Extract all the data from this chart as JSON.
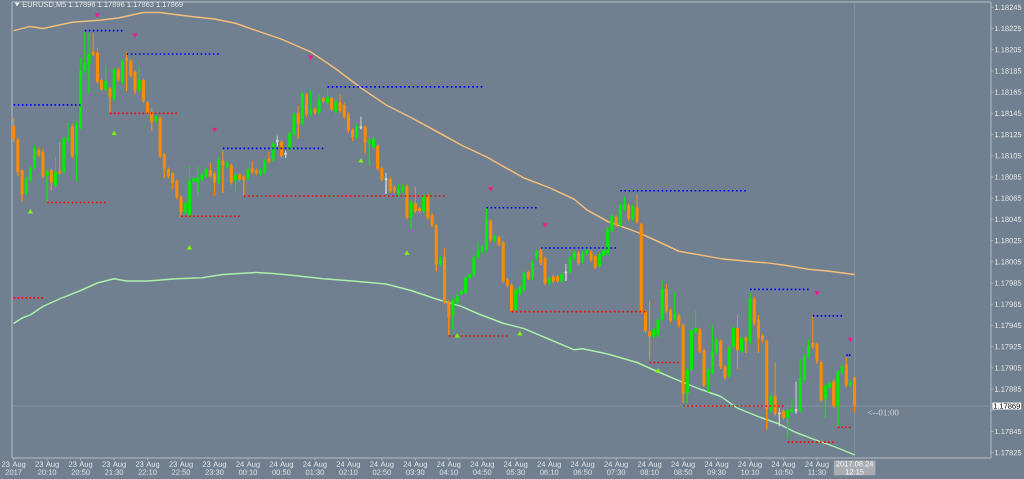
{
  "chart_data": {
    "type": "candlestick",
    "title": "EURUSD,M5 1.17896 1.17896 1.17863 1.17869",
    "x": [
      "2017-08-23T19:30",
      "2017-08-23T19:35",
      "2017-08-23T19:40",
      "2017-08-23T19:45",
      "2017-08-23T19:50",
      "2017-08-23T19:55",
      "2017-08-23T20:00",
      "2017-08-23T20:05",
      "2017-08-23T20:10",
      "2017-08-23T20:15",
      "2017-08-23T20:20",
      "2017-08-23T20:25",
      "2017-08-23T20:30",
      "2017-08-23T20:35",
      "2017-08-23T20:40",
      "2017-08-23T20:45",
      "2017-08-23T20:50",
      "2017-08-23T20:55",
      "2017-08-23T21:00",
      "2017-08-23T21:05",
      "2017-08-23T21:10",
      "2017-08-23T21:15",
      "2017-08-23T21:20",
      "2017-08-23T21:25",
      "2017-08-23T21:30",
      "2017-08-23T21:35",
      "2017-08-23T21:40",
      "2017-08-23T21:45",
      "2017-08-23T21:50",
      "2017-08-23T21:55",
      "2017-08-23T22:00",
      "2017-08-23T22:05",
      "2017-08-23T22:10",
      "2017-08-23T22:15",
      "2017-08-23T22:20",
      "2017-08-23T22:25",
      "2017-08-23T22:30",
      "2017-08-23T22:35",
      "2017-08-23T22:40",
      "2017-08-23T22:45",
      "2017-08-23T22:50",
      "2017-08-23T22:55",
      "2017-08-23T23:00",
      "2017-08-23T23:05",
      "2017-08-23T23:10",
      "2017-08-23T23:15",
      "2017-08-23T23:20",
      "2017-08-23T23:25",
      "2017-08-23T23:30",
      "2017-08-23T23:35",
      "2017-08-23T23:40",
      "2017-08-23T23:45",
      "2017-08-23T23:50",
      "2017-08-23T23:55",
      "2017-08-24T00:00",
      "2017-08-24T00:05",
      "2017-08-24T00:10",
      "2017-08-24T00:15",
      "2017-08-24T00:20",
      "2017-08-24T00:25",
      "2017-08-24T00:30",
      "2017-08-24T00:35",
      "2017-08-24T00:40",
      "2017-08-24T00:45",
      "2017-08-24T00:50",
      "2017-08-24T00:55",
      "2017-08-24T01:00",
      "2017-08-24T01:05",
      "2017-08-24T01:10",
      "2017-08-24T01:15",
      "2017-08-24T01:20",
      "2017-08-24T01:25",
      "2017-08-24T01:30",
      "2017-08-24T01:35",
      "2017-08-24T01:40",
      "2017-08-24T01:45",
      "2017-08-24T01:50",
      "2017-08-24T01:55",
      "2017-08-24T02:00",
      "2017-08-24T02:05",
      "2017-08-24T02:10",
      "2017-08-24T02:15",
      "2017-08-24T02:20",
      "2017-08-24T02:25",
      "2017-08-24T02:30",
      "2017-08-24T02:35",
      "2017-08-24T02:40",
      "2017-08-24T02:45",
      "2017-08-24T02:50",
      "2017-08-24T02:55",
      "2017-08-24T03:00",
      "2017-08-24T03:05",
      "2017-08-24T03:10",
      "2017-08-24T03:15",
      "2017-08-24T03:20",
      "2017-08-24T03:25",
      "2017-08-24T03:30",
      "2017-08-24T03:35",
      "2017-08-24T03:40",
      "2017-08-24T03:45",
      "2017-08-24T03:50",
      "2017-08-24T03:55",
      "2017-08-24T04:00",
      "2017-08-24T04:05",
      "2017-08-24T04:10",
      "2017-08-24T04:15",
      "2017-08-24T04:20",
      "2017-08-24T04:25",
      "2017-08-24T04:30",
      "2017-08-24T04:35",
      "2017-08-24T04:40",
      "2017-08-24T04:45",
      "2017-08-24T04:50",
      "2017-08-24T04:55",
      "2017-08-24T05:00",
      "2017-08-24T05:05",
      "2017-08-24T05:10",
      "2017-08-24T05:15",
      "2017-08-24T05:20",
      "2017-08-24T05:25",
      "2017-08-24T05:30",
      "2017-08-24T05:35",
      "2017-08-24T05:40",
      "2017-08-24T05:45",
      "2017-08-24T05:50",
      "2017-08-24T05:55",
      "2017-08-24T06:00",
      "2017-08-24T06:05",
      "2017-08-24T06:10",
      "2017-08-24T06:15",
      "2017-08-24T06:20",
      "2017-08-24T06:25",
      "2017-08-24T06:30",
      "2017-08-24T06:35",
      "2017-08-24T06:40",
      "2017-08-24T06:45",
      "2017-08-24T06:50",
      "2017-08-24T06:55",
      "2017-08-24T07:00",
      "2017-08-24T07:05",
      "2017-08-24T07:10",
      "2017-08-24T07:15",
      "2017-08-24T07:20",
      "2017-08-24T07:25",
      "2017-08-24T07:30",
      "2017-08-24T07:35",
      "2017-08-24T07:40",
      "2017-08-24T07:45",
      "2017-08-24T07:50",
      "2017-08-24T07:55",
      "2017-08-24T08:00",
      "2017-08-24T08:05",
      "2017-08-24T08:10",
      "2017-08-24T08:15",
      "2017-08-24T08:20",
      "2017-08-24T08:25",
      "2017-08-24T08:30",
      "2017-08-24T08:35",
      "2017-08-24T08:40",
      "2017-08-24T08:45",
      "2017-08-24T08:50",
      "2017-08-24T08:55",
      "2017-08-24T09:00",
      "2017-08-24T09:05",
      "2017-08-24T09:10",
      "2017-08-24T09:15",
      "2017-08-24T09:20",
      "2017-08-24T09:25",
      "2017-08-24T09:30",
      "2017-08-24T09:35",
      "2017-08-24T09:40",
      "2017-08-24T09:45",
      "2017-08-24T09:50",
      "2017-08-24T09:55",
      "2017-08-24T10:00",
      "2017-08-24T10:05",
      "2017-08-24T10:10",
      "2017-08-24T10:15",
      "2017-08-24T10:20",
      "2017-08-24T10:25",
      "2017-08-24T10:30",
      "2017-08-24T10:35",
      "2017-08-24T10:40",
      "2017-08-24T10:45",
      "2017-08-24T10:50",
      "2017-08-24T10:55",
      "2017-08-24T11:00",
      "2017-08-24T11:05",
      "2017-08-24T11:10",
      "2017-08-24T11:15",
      "2017-08-24T11:20",
      "2017-08-24T11:25",
      "2017-08-24T11:30",
      "2017-08-24T11:35",
      "2017-08-24T11:40",
      "2017-08-24T11:45",
      "2017-08-24T11:50",
      "2017-08-24T11:55",
      "2017-08-24T12:00",
      "2017-08-24T12:05",
      "2017-08-24T12:10",
      "2017-08-24T12:15"
    ],
    "ohlc": [
      [
        1.18133,
        1.1814,
        1.18118,
        1.18121
      ],
      [
        1.1812,
        1.18122,
        1.18086,
        1.1809
      ],
      [
        1.18091,
        1.18092,
        1.18062,
        1.18069
      ],
      [
        1.1807,
        1.18085,
        1.18068,
        1.18083
      ],
      [
        1.18083,
        1.18095,
        1.18081,
        1.18093
      ],
      [
        1.18094,
        1.18115,
        1.18092,
        1.18112
      ],
      [
        1.1811,
        1.18113,
        1.18104,
        1.18106
      ],
      [
        1.18108,
        1.18112,
        1.18084,
        1.18086
      ],
      [
        1.18086,
        1.18092,
        1.18062,
        1.1809
      ],
      [
        1.18091,
        1.18093,
        1.18072,
        1.1808
      ],
      [
        1.18077,
        1.18104,
        1.18075,
        1.18089
      ],
      [
        1.1809,
        1.18118,
        1.18087,
        1.18089
      ],
      [
        1.1809,
        1.18123,
        1.18088,
        1.18121
      ],
      [
        1.1812,
        1.18136,
        1.18118,
        1.18122
      ],
      [
        1.18132,
        1.18135,
        1.18103,
        1.18105
      ],
      [
        1.18106,
        1.18137,
        1.18081,
        1.18134
      ],
      [
        1.18132,
        1.18197,
        1.1813,
        1.18185
      ],
      [
        1.18185,
        1.18222,
        1.18183,
        1.18192
      ],
      [
        1.18191,
        1.18221,
        1.18164,
        1.18201
      ],
      [
        1.18203,
        1.18221,
        1.18199,
        1.18201
      ],
      [
        1.18202,
        1.18207,
        1.18173,
        1.18175
      ],
      [
        1.18176,
        1.18178,
        1.18166,
        1.18168
      ],
      [
        1.18168,
        1.18189,
        1.18166,
        1.18175
      ],
      [
        1.18168,
        1.1817,
        1.18146,
        1.1816
      ],
      [
        1.18159,
        1.18188,
        1.18157,
        1.18186
      ],
      [
        1.18186,
        1.18188,
        1.18175,
        1.18177
      ],
      [
        1.18175,
        1.18196,
        1.18173,
        1.18194
      ],
      [
        1.18197,
        1.18203,
        1.18166,
        1.18195
      ],
      [
        1.18194,
        1.18196,
        1.18179,
        1.18181
      ],
      [
        1.18184,
        1.18186,
        1.18163,
        1.18167
      ],
      [
        1.18167,
        1.1819,
        1.18165,
        1.18176
      ],
      [
        1.18176,
        1.18178,
        1.18155,
        1.18157
      ],
      [
        1.18155,
        1.18157,
        1.18143,
        1.18145
      ],
      [
        1.18146,
        1.1815,
        1.18129,
        1.18137
      ],
      [
        1.18138,
        1.18144,
        1.18136,
        1.18142
      ],
      [
        1.1814,
        1.18142,
        1.18103,
        1.18105
      ],
      [
        1.18106,
        1.18108,
        1.18084,
        1.18092
      ],
      [
        1.18092,
        1.18094,
        1.18084,
        1.18086
      ],
      [
        1.18088,
        1.1809,
        1.18074,
        1.1808
      ],
      [
        1.18081,
        1.18083,
        1.18064,
        1.18066
      ],
      [
        1.18066,
        1.18068,
        1.18047,
        1.18052
      ],
      [
        1.18052,
        1.18062,
        1.1805,
        1.1806
      ],
      [
        1.18049,
        1.18095,
        1.18047,
        1.18081
      ],
      [
        1.18081,
        1.18086,
        1.18079,
        1.18083
      ],
      [
        1.1808,
        1.18095,
        1.18067,
        1.18084
      ],
      [
        1.18083,
        1.1809,
        1.18081,
        1.18087
      ],
      [
        1.18086,
        1.18094,
        1.18084,
        1.18092
      ],
      [
        1.18091,
        1.18098,
        1.18084,
        1.18086
      ],
      [
        1.18088,
        1.1809,
        1.18067,
        1.1808
      ],
      [
        1.1808,
        1.18103,
        1.18078,
        1.18101
      ],
      [
        1.181,
        1.1811,
        1.1807,
        1.18096
      ],
      [
        1.18095,
        1.181,
        1.18093,
        1.18098
      ],
      [
        1.18096,
        1.18098,
        1.18078,
        1.1808
      ],
      [
        1.18082,
        1.18089,
        1.18071,
        1.18087
      ],
      [
        1.18087,
        1.18089,
        1.18081,
        1.18083
      ],
      [
        1.18085,
        1.18087,
        1.18067,
        1.18083
      ],
      [
        1.18084,
        1.18094,
        1.18082,
        1.18092
      ],
      [
        1.18093,
        1.181,
        1.18088,
        1.1809
      ],
      [
        1.18091,
        1.18093,
        1.18087,
        1.18089
      ],
      [
        1.18088,
        1.18093,
        1.18086,
        1.18091
      ],
      [
        1.1809,
        1.18102,
        1.18088,
        1.181
      ],
      [
        1.18102,
        1.18109,
        1.18098,
        1.181
      ],
      [
        1.18102,
        1.18118,
        1.181,
        1.18116
      ],
      [
        1.18119,
        1.18124,
        1.18114,
        1.18119
      ],
      [
        1.18118,
        1.1812,
        1.18103,
        1.18105
      ],
      [
        1.18107,
        1.1811,
        1.18103,
        1.18107
      ],
      [
        1.18112,
        1.18128,
        1.1811,
        1.18126
      ],
      [
        1.18126,
        1.18146,
        1.18124,
        1.18144
      ],
      [
        1.18145,
        1.18152,
        1.18121,
        1.18136
      ],
      [
        1.18136,
        1.18165,
        1.18134,
        1.18163
      ],
      [
        1.18162,
        1.18164,
        1.18142,
        1.18144
      ],
      [
        1.18145,
        1.18167,
        1.18143,
        1.18149
      ],
      [
        1.18149,
        1.18151,
        1.18144,
        1.18146
      ],
      [
        1.18146,
        1.18163,
        1.18144,
        1.18158
      ],
      [
        1.18159,
        1.18161,
        1.18155,
        1.18157
      ],
      [
        1.18155,
        1.18169,
        1.18153,
        1.1816
      ],
      [
        1.18159,
        1.18161,
        1.18147,
        1.18149
      ],
      [
        1.18147,
        1.18158,
        1.18145,
        1.18156
      ],
      [
        1.18155,
        1.18163,
        1.18146,
        1.18148
      ],
      [
        1.18153,
        1.18155,
        1.1814,
        1.18142
      ],
      [
        1.18144,
        1.18146,
        1.18127,
        1.18129
      ],
      [
        1.18129,
        1.18131,
        1.18119,
        1.18123
      ],
      [
        1.18123,
        1.18135,
        1.18121,
        1.18133
      ],
      [
        1.18132,
        1.18142,
        1.1813,
        1.18132
      ],
      [
        1.18132,
        1.18134,
        1.18107,
        1.18118
      ],
      [
        1.18117,
        1.18124,
        1.18096,
        1.18119
      ],
      [
        1.18113,
        1.18123,
        1.18111,
        1.18121
      ],
      [
        1.18114,
        1.18116,
        1.18091,
        1.18093
      ],
      [
        1.18093,
        1.18095,
        1.18081,
        1.18083
      ],
      [
        1.18083,
        1.18089,
        1.18069,
        1.18083
      ],
      [
        1.18083,
        1.18085,
        1.1807,
        1.18072
      ],
      [
        1.18075,
        1.18077,
        1.1807,
        1.18072
      ],
      [
        1.18069,
        1.18078,
        1.18067,
        1.18073
      ],
      [
        1.18072,
        1.18078,
        1.1807,
        1.18076
      ],
      [
        1.18076,
        1.18078,
        1.18045,
        1.18047
      ],
      [
        1.18047,
        1.18063,
        1.18036,
        1.18061
      ],
      [
        1.1806,
        1.18076,
        1.18051,
        1.18053
      ],
      [
        1.18055,
        1.18057,
        1.18051,
        1.18053
      ],
      [
        1.18053,
        1.18069,
        1.18051,
        1.18067
      ],
      [
        1.18067,
        1.18069,
        1.18045,
        1.18047
      ],
      [
        1.18049,
        1.18051,
        1.18038,
        1.1804
      ],
      [
        1.18039,
        1.18041,
        1.17996,
        1.18003
      ],
      [
        1.18003,
        1.1801,
        1.18001,
        1.18008
      ],
      [
        1.18009,
        1.18018,
        1.17965,
        1.17967
      ],
      [
        1.17967,
        1.17969,
        1.17936,
        1.17953
      ],
      [
        1.17955,
        1.17971,
        1.17941,
        1.17969
      ],
      [
        1.17967,
        1.17975,
        1.17965,
        1.17973
      ],
      [
        1.17975,
        1.17979,
        1.17973,
        1.17977
      ],
      [
        1.17976,
        1.17992,
        1.17974,
        1.1799
      ],
      [
        1.1799,
        1.17995,
        1.17988,
        1.17993
      ],
      [
        1.17993,
        1.18011,
        1.17991,
        1.18009
      ],
      [
        1.1801,
        1.18024,
        1.18008,
        1.18015
      ],
      [
        1.18015,
        1.18021,
        1.18013,
        1.18019
      ],
      [
        1.18017,
        1.18056,
        1.18015,
        1.18045
      ],
      [
        1.18043,
        1.18045,
        1.18024,
        1.18026
      ],
      [
        1.18026,
        1.18031,
        1.18024,
        1.18029
      ],
      [
        1.18028,
        1.1803,
        1.1802,
        1.18022
      ],
      [
        1.18023,
        1.18025,
        1.17985,
        1.17987
      ],
      [
        1.17988,
        1.1799,
        1.17981,
        1.17983
      ],
      [
        1.17983,
        1.17985,
        1.17957,
        1.17959
      ],
      [
        1.1796,
        1.1798,
        1.17958,
        1.17978
      ],
      [
        1.17975,
        1.17983,
        1.17973,
        1.17981
      ],
      [
        1.17979,
        1.17996,
        1.17977,
        1.17994
      ],
      [
        1.17995,
        1.17997,
        1.17988,
        1.1799
      ],
      [
        1.1799,
        1.18006,
        1.17988,
        1.18004
      ],
      [
        1.18009,
        1.18016,
        1.18007,
        1.18014
      ],
      [
        1.18016,
        1.18019,
        1.18002,
        1.18004
      ],
      [
        1.18008,
        1.1801,
        1.17983,
        1.17985
      ],
      [
        1.17985,
        1.17991,
        1.17983,
        1.17989
      ],
      [
        1.17991,
        1.17993,
        1.17985,
        1.17987
      ],
      [
        1.17991,
        1.17993,
        1.17985,
        1.17987
      ],
      [
        1.17987,
        1.17995,
        1.17985,
        1.17993
      ],
      [
        1.17995,
        1.18003,
        1.17987,
        1.17995
      ],
      [
        1.17996,
        1.18011,
        1.17994,
        1.18009
      ],
      [
        1.18009,
        1.18016,
        1.18007,
        1.18014
      ],
      [
        1.18013,
        1.18015,
        1.18002,
        1.18004
      ],
      [
        1.18006,
        1.18015,
        1.18004,
        1.18013
      ],
      [
        1.18013,
        1.18018,
        1.18011,
        1.18016
      ],
      [
        1.18014,
        1.18016,
        1.18005,
        1.18007
      ],
      [
        1.1801,
        1.18012,
        1.17998,
        1.18
      ],
      [
        1.18001,
        1.18014,
        1.17999,
        1.18012
      ],
      [
        1.18011,
        1.18018,
        1.18009,
        1.18016
      ],
      [
        1.18013,
        1.18038,
        1.18011,
        1.18036
      ],
      [
        1.18035,
        1.1805,
        1.18033,
        1.18048
      ],
      [
        1.18047,
        1.18049,
        1.18038,
        1.1804
      ],
      [
        1.1804,
        1.1806,
        1.18038,
        1.18058
      ],
      [
        1.18055,
        1.18066,
        1.18053,
        1.18059
      ],
      [
        1.18058,
        1.1806,
        1.18044,
        1.18046
      ],
      [
        1.18046,
        1.18059,
        1.18044,
        1.18057
      ],
      [
        1.18056,
        1.18068,
        1.18041,
        1.18043
      ],
      [
        1.1804,
        1.18042,
        1.17956,
        1.17958
      ],
      [
        1.17958,
        1.1796,
        1.17938,
        1.1794
      ],
      [
        1.17939,
        1.17968,
        1.17913,
        1.17935
      ],
      [
        1.17935,
        1.17943,
        1.17933,
        1.17941
      ],
      [
        1.17936,
        1.17952,
        1.17934,
        1.1795
      ],
      [
        1.17951,
        1.17987,
        1.17949,
        1.17979
      ],
      [
        1.17979,
        1.17984,
        1.17957,
        1.17959
      ],
      [
        1.17959,
        1.17961,
        1.17948,
        1.1795
      ],
      [
        1.17952,
        1.17976,
        1.1795,
        1.17956
      ],
      [
        1.17954,
        1.17956,
        1.17943,
        1.17945
      ],
      [
        1.17945,
        1.17947,
        1.17872,
        1.17881
      ],
      [
        1.17881,
        1.17905,
        1.17872,
        1.17903
      ],
      [
        1.17903,
        1.17942,
        1.17901,
        1.1794
      ],
      [
        1.17939,
        1.17959,
        1.17937,
        1.17942
      ],
      [
        1.17941,
        1.17943,
        1.17919,
        1.17921
      ],
      [
        1.17921,
        1.17923,
        1.17887,
        1.17889
      ],
      [
        1.17889,
        1.17905,
        1.17882,
        1.17903
      ],
      [
        1.17901,
        1.17945,
        1.17899,
        1.1792
      ],
      [
        1.1792,
        1.17933,
        1.17918,
        1.17931
      ],
      [
        1.1793,
        1.17932,
        1.17904,
        1.17906
      ],
      [
        1.17906,
        1.17908,
        1.17894,
        1.17896
      ],
      [
        1.17898,
        1.17926,
        1.17896,
        1.17924
      ],
      [
        1.17925,
        1.17944,
        1.17923,
        1.17942
      ],
      [
        1.17942,
        1.17955,
        1.17904,
        1.17922
      ],
      [
        1.17921,
        1.17935,
        1.17919,
        1.17933
      ],
      [
        1.17933,
        1.17935,
        1.17919,
        1.17931
      ],
      [
        1.1793,
        1.17976,
        1.17928,
        1.1797
      ],
      [
        1.1797,
        1.17972,
        1.17945,
        1.17947
      ],
      [
        1.1795,
        1.17955,
        1.17919,
        1.17933
      ],
      [
        1.17935,
        1.17937,
        1.17929,
        1.17931
      ],
      [
        1.1793,
        1.17932,
        1.17847,
        1.17866
      ],
      [
        1.17865,
        1.1788,
        1.17863,
        1.17878
      ],
      [
        1.17878,
        1.1791,
        1.1786,
        1.17862
      ],
      [
        1.17862,
        1.17867,
        1.1785,
        1.17862
      ],
      [
        1.17864,
        1.17866,
        1.17856,
        1.17858
      ],
      [
        1.17858,
        1.17867,
        1.17838,
        1.17865
      ],
      [
        1.17864,
        1.17876,
        1.17862,
        1.17866
      ],
      [
        1.17865,
        1.17892,
        1.17862,
        1.17865
      ],
      [
        1.17865,
        1.17913,
        1.17863,
        1.17895
      ],
      [
        1.17894,
        1.17918,
        1.17892,
        1.17916
      ],
      [
        1.17916,
        1.17932,
        1.17914,
        1.17926
      ],
      [
        1.17928,
        1.17954,
        1.17923,
        1.17925
      ],
      [
        1.17927,
        1.17929,
        1.17909,
        1.17912
      ],
      [
        1.1791,
        1.17912,
        1.17873,
        1.17875
      ],
      [
        1.17876,
        1.1789,
        1.17858,
        1.17888
      ],
      [
        1.17887,
        1.17892,
        1.17885,
        1.1789
      ],
      [
        1.17892,
        1.17894,
        1.17867,
        1.17869
      ],
      [
        1.17869,
        1.17903,
        1.1785,
        1.17901
      ],
      [
        1.17901,
        1.17908,
        1.17899,
        1.17906
      ],
      [
        1.17908,
        1.17915,
        1.17887,
        1.17889
      ],
      [
        1.17889,
        1.17893,
        1.17887,
        1.17891
      ],
      [
        1.17896,
        1.17896,
        1.17863,
        1.17869
      ]
    ],
    "colors": [
      "#ff8c00",
      "#ff8c00",
      "#ff8c00",
      "#00ee00",
      "#00ee00",
      "#00ee00",
      "#ff8c00",
      "#ff8c00",
      "#00ee00",
      "#ff8c00",
      "#00ee00",
      "#ff8c00",
      "#00ee00",
      "#00ee00",
      "#ff8c00",
      "#00ee00",
      "#00ee00",
      "#00ee00",
      "#00ee00",
      "#ff8c00",
      "#ff8c00",
      "#ff8c00",
      "#00ee00",
      "#ff8c00",
      "#00ee00",
      "#ff8c00",
      "#00ee00",
      "#ff8c00",
      "#ff8c00",
      "#ff8c00",
      "#00ee00",
      "#ff8c00",
      "#ff8c00",
      "#ff8c00",
      "#00ee00",
      "#ff8c00",
      "#ff8c00",
      "#ff8c00",
      "#ff8c00",
      "#ff8c00",
      "#ff8c00",
      "#00ee00",
      "#00ee00",
      "#00ee00",
      "#00ee00",
      "#00ee00",
      "#00ee00",
      "#ff8c00",
      "#ff8c00",
      "#00ee00",
      "#ff8c00",
      "#00ee00",
      "#ff8c00",
      "#00ee00",
      "#ff8c00",
      "#ff8c00",
      "#00ee00",
      "#ff8c00",
      "#ff8c00",
      "#00ee00",
      "#00ee00",
      "#ff8c00",
      "#00ee00",
      "#d3d3d3",
      "#ff8c00",
      "#d3d3d3",
      "#00ee00",
      "#00ee00",
      "#ff8c00",
      "#00ee00",
      "#ff8c00",
      "#00ee00",
      "#ff8c00",
      "#00ee00",
      "#ff8c00",
      "#00ee00",
      "#ff8c00",
      "#00ee00",
      "#ff8c00",
      "#ff8c00",
      "#ff8c00",
      "#ff8c00",
      "#00ee00",
      "#d3d3d3",
      "#ff8c00",
      "#00ee00",
      "#00ee00",
      "#ff8c00",
      "#ff8c00",
      "#d3d3d3",
      "#ff8c00",
      "#ff8c00",
      "#00ee00",
      "#00ee00",
      "#ff8c00",
      "#00ee00",
      "#ff8c00",
      "#ff8c00",
      "#00ee00",
      "#ff8c00",
      "#ff8c00",
      "#ff8c00",
      "#00ee00",
      "#ff8c00",
      "#ff8c00",
      "#00ee00",
      "#00ee00",
      "#00ee00",
      "#00ee00",
      "#00ee00",
      "#00ee00",
      "#00ee00",
      "#00ee00",
      "#00ee00",
      "#ff8c00",
      "#00ee00",
      "#ff8c00",
      "#ff8c00",
      "#ff8c00",
      "#ff8c00",
      "#00ee00",
      "#00ee00",
      "#00ee00",
      "#ff8c00",
      "#00ee00",
      "#00ee00",
      "#ff8c00",
      "#ff8c00",
      "#00ee00",
      "#ff8c00",
      "#ff8c00",
      "#00ee00",
      "#d3d3d3",
      "#00ee00",
      "#00ee00",
      "#ff8c00",
      "#00ee00",
      "#00ee00",
      "#ff8c00",
      "#ff8c00",
      "#00ee00",
      "#00ee00",
      "#00ee00",
      "#00ee00",
      "#ff8c00",
      "#00ee00",
      "#00ee00",
      "#ff8c00",
      "#00ee00",
      "#ff8c00",
      "#ff8c00",
      "#ff8c00",
      "#ff8c00",
      "#00ee00",
      "#00ee00",
      "#00ee00",
      "#ff8c00",
      "#ff8c00",
      "#00ee00",
      "#ff8c00",
      "#ff8c00",
      "#00ee00",
      "#00ee00",
      "#00ee00",
      "#ff8c00",
      "#ff8c00",
      "#00ee00",
      "#00ee00",
      "#00ee00",
      "#ff8c00",
      "#ff8c00",
      "#00ee00",
      "#00ee00",
      "#ff8c00",
      "#00ee00",
      "#ff8c00",
      "#00ee00",
      "#ff8c00",
      "#ff8c00",
      "#ff8c00",
      "#ff8c00",
      "#00ee00",
      "#ff8c00",
      "#d3d3d3",
      "#ff8c00",
      "#00ee00",
      "#00ee00",
      "#d3d3d3",
      "#00ee00",
      "#00ee00",
      "#00ee00",
      "#ff8c00",
      "#ff8c00",
      "#ff8c00",
      "#00ee00",
      "#00ee00",
      "#ff8c00",
      "#00ee00",
      "#00ee00",
      "#ff8c00",
      "#00ee00",
      "#ff8c00"
    ],
    "series": [
      {
        "type": "line",
        "color": "#f5bd78",
        "x": [
          "2017-08-23T19:30",
          "2017-08-23T19:50",
          "2017-08-23T20:05",
          "2017-08-23T20:40",
          "2017-08-23T21:15",
          "2017-08-23T21:35",
          "2017-08-23T22:05",
          "2017-08-23T22:25",
          "2017-08-23T22:45",
          "2017-08-23T23:05",
          "2017-08-23T23:30",
          "2017-08-23T23:55",
          "2017-08-24T00:20",
          "2017-08-24T00:50",
          "2017-08-24T01:25",
          "2017-08-24T01:55",
          "2017-08-24T02:25",
          "2017-08-24T02:55",
          "2017-08-24T03:25",
          "2017-08-24T04:00",
          "2017-08-24T04:25",
          "2017-08-24T04:55",
          "2017-08-24T05:40",
          "2017-08-24T06:10",
          "2017-08-24T06:40",
          "2017-08-24T06:55",
          "2017-08-24T07:20",
          "2017-08-24T07:55",
          "2017-08-24T08:15",
          "2017-08-24T08:45",
          "2017-08-24T09:35",
          "2017-08-24T10:00",
          "2017-08-24T10:30",
          "2017-08-24T10:50",
          "2017-08-24T11:20",
          "2017-08-24T11:45",
          "2017-08-24T12:15"
        ],
        "values": [
          1.18223,
          1.18227,
          1.18225,
          1.18231,
          1.18233,
          1.18235,
          1.1824,
          1.1824,
          1.18238,
          1.18236,
          1.18234,
          1.1823,
          1.18223,
          1.18215,
          1.18203,
          1.18187,
          1.18169,
          1.18153,
          1.18141,
          1.18126,
          1.18115,
          1.18104,
          1.18084,
          1.18075,
          1.18064,
          1.18054,
          1.18043,
          1.18033,
          1.18026,
          1.18015,
          1.18008,
          1.18006,
          1.18004,
          1.18002,
          1.17998,
          1.17996,
          1.17993
        ]
      },
      {
        "type": "line",
        "color": "#aaf0aa",
        "x": [
          "2017-08-23T19:30",
          "2017-08-23T19:40",
          "2017-08-23T19:50",
          "2017-08-23T20:05",
          "2017-08-23T20:25",
          "2017-08-23T20:50",
          "2017-08-23T21:10",
          "2017-08-23T21:30",
          "2017-08-23T21:45",
          "2017-08-23T22:10",
          "2017-08-23T22:45",
          "2017-08-23T23:15",
          "2017-08-23T23:40",
          "2017-08-24T00:20",
          "2017-08-24T00:40",
          "2017-08-24T01:05",
          "2017-08-24T01:40",
          "2017-08-24T02:15",
          "2017-08-24T02:55",
          "2017-08-24T03:25",
          "2017-08-24T03:55",
          "2017-08-24T04:25",
          "2017-08-24T04:45",
          "2017-08-24T05:15",
          "2017-08-24T05:40",
          "2017-08-24T06:10",
          "2017-08-24T06:40",
          "2017-08-24T06:50",
          "2017-08-24T07:20",
          "2017-08-24T07:55",
          "2017-08-24T08:15",
          "2017-08-24T08:45",
          "2017-08-24T09:10",
          "2017-08-24T09:35",
          "2017-08-24T09:55",
          "2017-08-24T10:20",
          "2017-08-24T10:45",
          "2017-08-24T11:05",
          "2017-08-24T11:25",
          "2017-08-24T11:50",
          "2017-08-24T12:15"
        ],
        "values": [
          1.17947,
          1.17952,
          1.17955,
          1.17963,
          1.1797,
          1.17978,
          1.17985,
          1.17989,
          1.17987,
          1.17987,
          1.17989,
          1.1799,
          1.17993,
          1.17995,
          1.17994,
          1.17992,
          1.17989,
          1.17987,
          1.17984,
          1.17978,
          1.1797,
          1.17963,
          1.17956,
          1.17947,
          1.17942,
          1.17932,
          1.17922,
          1.17923,
          1.17918,
          1.1791,
          1.17903,
          1.17893,
          1.17885,
          1.17878,
          1.17867,
          1.17859,
          1.17852,
          1.17844,
          1.17838,
          1.17831,
          1.17823
        ]
      },
      {
        "type": "line",
        "line_style": "dotted",
        "color": "#0000ff",
        "x": [
          "2017-08-23T19:30",
          "2017-08-23T20:50"
        ],
        "values": [
          1.18153,
          1.18153
        ]
      },
      {
        "type": "line",
        "line_style": "dotted",
        "color": "#0000ff",
        "x": [
          "2017-08-23T20:55",
          "2017-08-23T21:40"
        ],
        "values": [
          1.18223,
          1.18223
        ]
      },
      {
        "type": "line",
        "line_style": "dotted",
        "color": "#0000ff",
        "x": [
          "2017-08-23T21:45",
          "2017-08-23T23:35"
        ],
        "values": [
          1.18201,
          1.18201
        ]
      },
      {
        "type": "line",
        "line_style": "dotted",
        "color": "#0000ff",
        "x": [
          "2017-08-23T23:40",
          "2017-08-24T01:40"
        ],
        "values": [
          1.18112,
          1.18112
        ]
      },
      {
        "type": "line",
        "line_style": "dotted",
        "color": "#0000ff",
        "x": [
          "2017-08-24T01:45",
          "2017-08-24T04:50"
        ],
        "values": [
          1.1817,
          1.1817
        ]
      },
      {
        "type": "line",
        "line_style": "dotted",
        "color": "#0000ff",
        "x": [
          "2017-08-24T04:55",
          "2017-08-24T05:55"
        ],
        "values": [
          1.18056,
          1.18056
        ]
      },
      {
        "type": "line",
        "line_style": "dotted",
        "color": "#0000ff",
        "x": [
          "2017-08-24T06:00",
          "2017-08-24T07:30"
        ],
        "values": [
          1.18018,
          1.18018
        ]
      },
      {
        "type": "line",
        "line_style": "dotted",
        "color": "#0000ff",
        "x": [
          "2017-08-24T07:35",
          "2017-08-24T10:05"
        ],
        "values": [
          1.18072,
          1.18072
        ]
      },
      {
        "type": "line",
        "line_style": "dotted",
        "color": "#0000ff",
        "x": [
          "2017-08-24T10:10",
          "2017-08-24T11:20"
        ],
        "values": [
          1.17979,
          1.17979
        ]
      },
      {
        "type": "line",
        "line_style": "dotted",
        "color": "#0000ff",
        "x": [
          "2017-08-24T11:25",
          "2017-08-24T12:00"
        ],
        "values": [
          1.17954,
          1.17954
        ]
      },
      {
        "type": "line",
        "line_style": "dotted",
        "color": "#0000ff",
        "x": [
          "2017-08-24T12:05",
          "2017-08-24T12:10"
        ],
        "values": [
          1.17917,
          1.17917
        ]
      },
      {
        "type": "line",
        "line_style": "dotted",
        "color": "#ff0000",
        "x": [
          "2017-08-23T19:30",
          "2017-08-23T20:05"
        ],
        "values": [
          1.17971,
          1.17971
        ]
      },
      {
        "type": "line",
        "line_style": "dotted",
        "color": "#ff0000",
        "x": [
          "2017-08-23T20:10",
          "2017-08-23T21:20"
        ],
        "values": [
          1.18061,
          1.18061
        ]
      },
      {
        "type": "line",
        "line_style": "dotted",
        "color": "#ff0000",
        "x": [
          "2017-08-23T21:25",
          "2017-08-23T22:45"
        ],
        "values": [
          1.18145,
          1.18145
        ]
      },
      {
        "type": "line",
        "line_style": "dotted",
        "color": "#ff0000",
        "x": [
          "2017-08-23T22:50",
          "2017-08-24T00:00"
        ],
        "values": [
          1.18048,
          1.18048
        ]
      },
      {
        "type": "line",
        "line_style": "dotted",
        "color": "#ff0000",
        "x": [
          "2017-08-24T00:05",
          "2017-08-24T04:05"
        ],
        "values": [
          1.18067,
          1.18067
        ]
      },
      {
        "type": "line",
        "line_style": "dotted",
        "color": "#ff0000",
        "x": [
          "2017-08-24T04:10",
          "2017-08-24T05:20"
        ],
        "values": [
          1.17935,
          1.17935
        ]
      },
      {
        "type": "line",
        "line_style": "dotted",
        "color": "#ff0000",
        "x": [
          "2017-08-24T05:25",
          "2017-08-24T08:05"
        ],
        "values": [
          1.17958,
          1.17958
        ]
      },
      {
        "type": "line",
        "line_style": "dotted",
        "color": "#ff0000",
        "x": [
          "2017-08-24T08:10",
          "2017-08-24T08:45"
        ],
        "values": [
          1.1791,
          1.1791
        ]
      },
      {
        "type": "line",
        "line_style": "dotted",
        "color": "#ff0000",
        "x": [
          "2017-08-24T08:50",
          "2017-08-24T10:50"
        ],
        "values": [
          1.17869,
          1.17869
        ]
      },
      {
        "type": "line",
        "line_style": "dotted",
        "color": "#ff0000",
        "x": [
          "2017-08-24T10:55",
          "2017-08-24T11:50"
        ],
        "values": [
          1.17835,
          1.17835
        ]
      },
      {
        "type": "line",
        "line_style": "dotted",
        "color": "#ff0000",
        "x": [
          "2017-08-24T11:55",
          "2017-08-24T12:10"
        ],
        "values": [
          1.17849,
          1.17849
        ]
      },
      {
        "type": "scatter",
        "marker": "triangle",
        "color": "#ff1493",
        "x": [
          "2017-08-23T21:10",
          "2017-08-23T21:55",
          "2017-08-23T23:30",
          "2017-08-24T01:25",
          "2017-08-24T05:00",
          "2017-08-24T06:05",
          "2017-08-24T11:30",
          "2017-08-24T12:10"
        ],
        "values": [
          1.18238,
          1.18219,
          1.1813,
          1.18198,
          1.18074,
          1.1804,
          1.17976,
          1.17932
        ]
      },
      {
        "type": "scatter",
        "marker": "triangle",
        "color": "#7cfc00",
        "x": [
          "2017-08-23T19:50",
          "2017-08-23T21:30",
          "2017-08-23T23:00",
          "2017-08-24T02:25",
          "2017-08-24T03:20",
          "2017-08-24T04:20",
          "2017-08-24T05:35",
          "2017-08-24T08:20"
        ],
        "values": [
          1.18052,
          1.18126,
          1.18018,
          1.181,
          1.18013,
          1.17935,
          1.17937,
          1.17902
        ]
      }
    ],
    "xlim": [
      "2017-08-23T19:28",
      "2017-08-24T14:58"
    ],
    "xticks": [
      {
        "value": "2017-08-23T19:30",
        "label": "23 Aug 2017"
      },
      {
        "value": "2017-08-23T20:10",
        "label": "23 Aug 20:10"
      },
      {
        "value": "2017-08-23T20:50",
        "label": "23 Aug 20:50"
      },
      {
        "value": "2017-08-23T21:30",
        "label": "23 Aug 21:30"
      },
      {
        "value": "2017-08-23T22:10",
        "label": "23 Aug 22:10"
      },
      {
        "value": "2017-08-23T22:50",
        "label": "23 Aug 22:50"
      },
      {
        "value": "2017-08-23T23:30",
        "label": "23 Aug 23:30"
      },
      {
        "value": "2017-08-24T00:10",
        "label": "24 Aug 00:10"
      },
      {
        "value": "2017-08-24T00:50",
        "label": "24 Aug 00:50"
      },
      {
        "value": "2017-08-24T01:30",
        "label": "24 Aug 01:30"
      },
      {
        "value": "2017-08-24T02:10",
        "label": "24 Aug 02:10"
      },
      {
        "value": "2017-08-24T02:50",
        "label": "24 Aug 02:50"
      },
      {
        "value": "2017-08-24T03:30",
        "label": "24 Aug 03:30"
      },
      {
        "value": "2017-08-24T04:10",
        "label": "24 Aug 04:10"
      },
      {
        "value": "2017-08-24T04:50",
        "label": "24 Aug 04:50"
      },
      {
        "value": "2017-08-24T05:30",
        "label": "24 Aug 05:30"
      },
      {
        "value": "2017-08-24T06:10",
        "label": "24 Aug 06:10"
      },
      {
        "value": "2017-08-24T06:50",
        "label": "24 Aug 06:50"
      },
      {
        "value": "2017-08-24T07:30",
        "label": "24 Aug 07:30"
      },
      {
        "value": "2017-08-24T08:10",
        "label": "24 Aug 08:10"
      },
      {
        "value": "2017-08-24T08:50",
        "label": "24 Aug 08:50"
      },
      {
        "value": "2017-08-24T09:30",
        "label": "24 Aug 09:30"
      },
      {
        "value": "2017-08-24T10:10",
        "label": "24 Aug 10:10"
      },
      {
        "value": "2017-08-24T10:50",
        "label": "24 Aug 10:50"
      },
      {
        "value": "2017-08-24T11:30",
        "label": "24 Aug 11:30"
      }
    ],
    "ylim": [
      1.1782,
      1.1825
    ],
    "yticks": [
      1.18245,
      1.18225,
      1.18205,
      1.18185,
      1.18165,
      1.18145,
      1.18125,
      1.18105,
      1.18085,
      1.18065,
      1.18045,
      1.18025,
      1.18005,
      1.17985,
      1.17965,
      1.17945,
      1.17925,
      1.17905,
      1.17885,
      {
        "value": 1.17865,
        "label": null
      },
      1.17845,
      1.17825
    ],
    "ref_lines": [
      {
        "axis": "y",
        "value": 1.17869,
        "label": "1.17869",
        "color": "#8e9aa6"
      },
      {
        "axis": "x",
        "value": "2017-08-24T12:15",
        "label": "2017.08.24 12:15",
        "color": "#8e9aa6"
      }
    ],
    "annotations": [
      "<--01:00"
    ]
  }
}
